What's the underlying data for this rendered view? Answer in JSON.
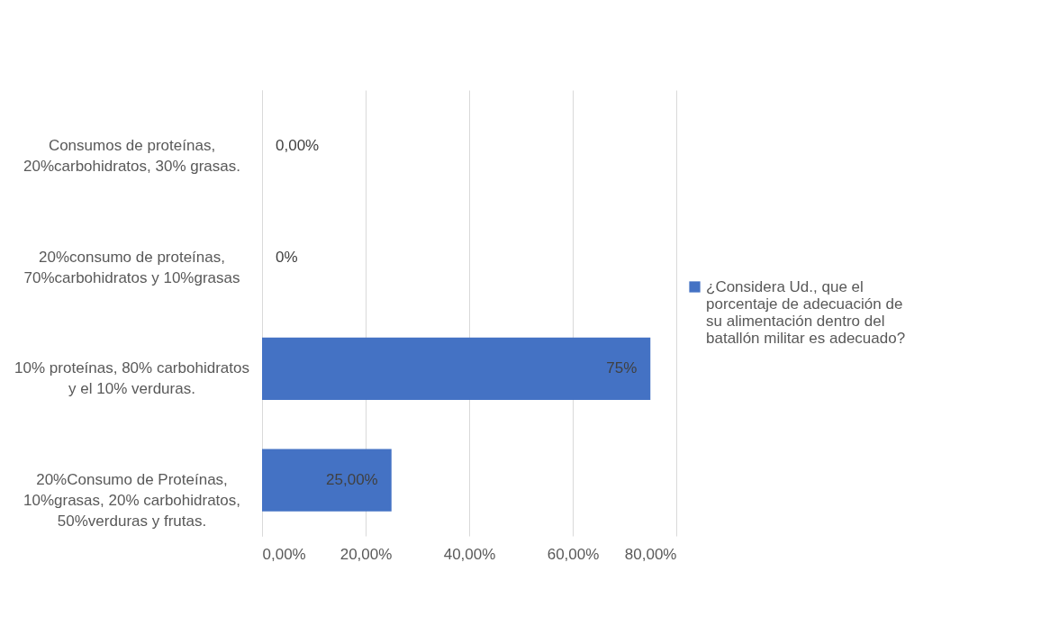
{
  "chart_data": {
    "type": "bar",
    "orientation": "horizontal",
    "categories": [
      "Consumos de proteínas, 20%carbohidratos, 30% grasas.",
      "20%consumo de proteínas, 70%carbohidratos y 10%grasas",
      "10% proteínas, 80% carbohidratos y el 10% verduras.",
      "20%Consumo de Proteínas, 10%grasas, 20% carbohidratos, 50%verduras y frutas."
    ],
    "series": [
      {
        "name": "¿Considera Ud., que el porcentaje de adecuación de su alimentación dentro del batallón militar es adecuado?",
        "color": "#4472c4",
        "values": [
          0,
          0,
          75,
          25
        ],
        "value_labels": [
          "0,00%",
          "0%",
          "75%",
          "25,00%"
        ]
      }
    ],
    "xlim": [
      0,
      80
    ],
    "xticks": [
      {
        "value": 0,
        "label": "0,00%"
      },
      {
        "value": 20,
        "label": "20,00%"
      },
      {
        "value": 40,
        "label": "40,00%"
      },
      {
        "value": 60,
        "label": "60,00%"
      },
      {
        "value": 80,
        "label": "80,00%"
      }
    ],
    "grid": "x",
    "legend": "right"
  }
}
